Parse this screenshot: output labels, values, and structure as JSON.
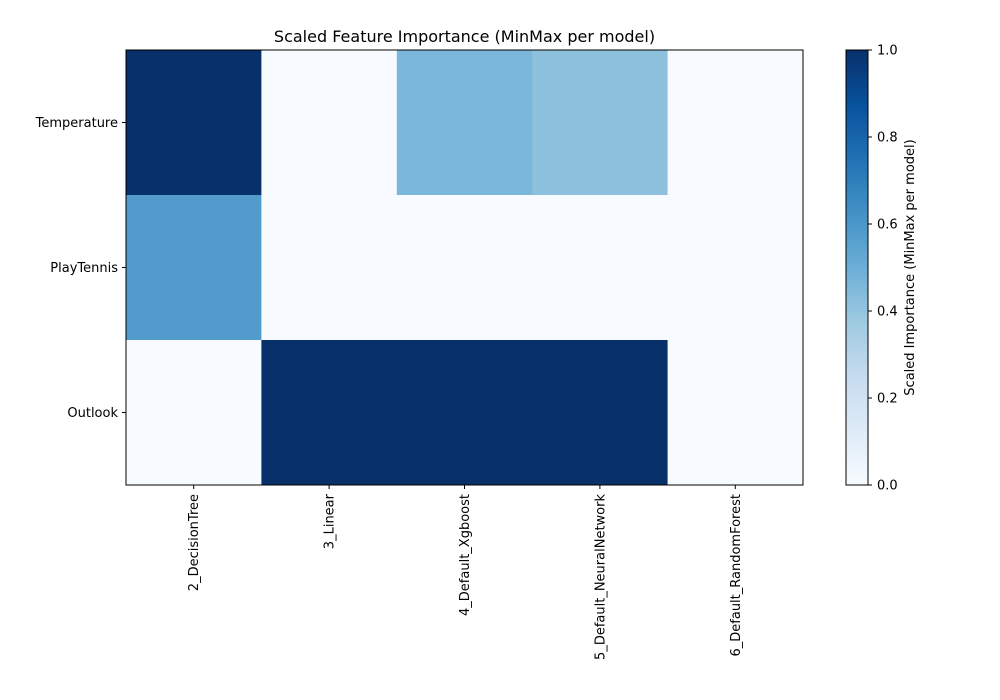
{
  "chart_data": {
    "type": "heatmap",
    "title": "Scaled Feature Importance (MinMax per model)",
    "rows": [
      "Temperature",
      "PlayTennis",
      "Outlook"
    ],
    "columns": [
      "2_DecisionTree",
      "3_Linear",
      "4_Default_Xgboost",
      "5_Default_NeuralNetwork",
      "6_Default_RandomForest"
    ],
    "values": [
      [
        1.0,
        0.0,
        0.46,
        0.42,
        0.0
      ],
      [
        0.58,
        0.0,
        0.0,
        0.0,
        0.0
      ],
      [
        0.0,
        1.0,
        1.0,
        1.0,
        0.0
      ]
    ],
    "colorbar": {
      "label": "Scaled Importance (MinMax per model)",
      "range": [
        0.0,
        1.0
      ],
      "ticks": [
        "0.0",
        "0.2",
        "0.4",
        "0.6",
        "0.8",
        "1.0"
      ]
    },
    "colormap": [
      "#f7fbff",
      "#deebf7",
      "#c6dbef",
      "#9ecae1",
      "#6baed6",
      "#4292c6",
      "#2171b5",
      "#08519c",
      "#08306b"
    ]
  }
}
